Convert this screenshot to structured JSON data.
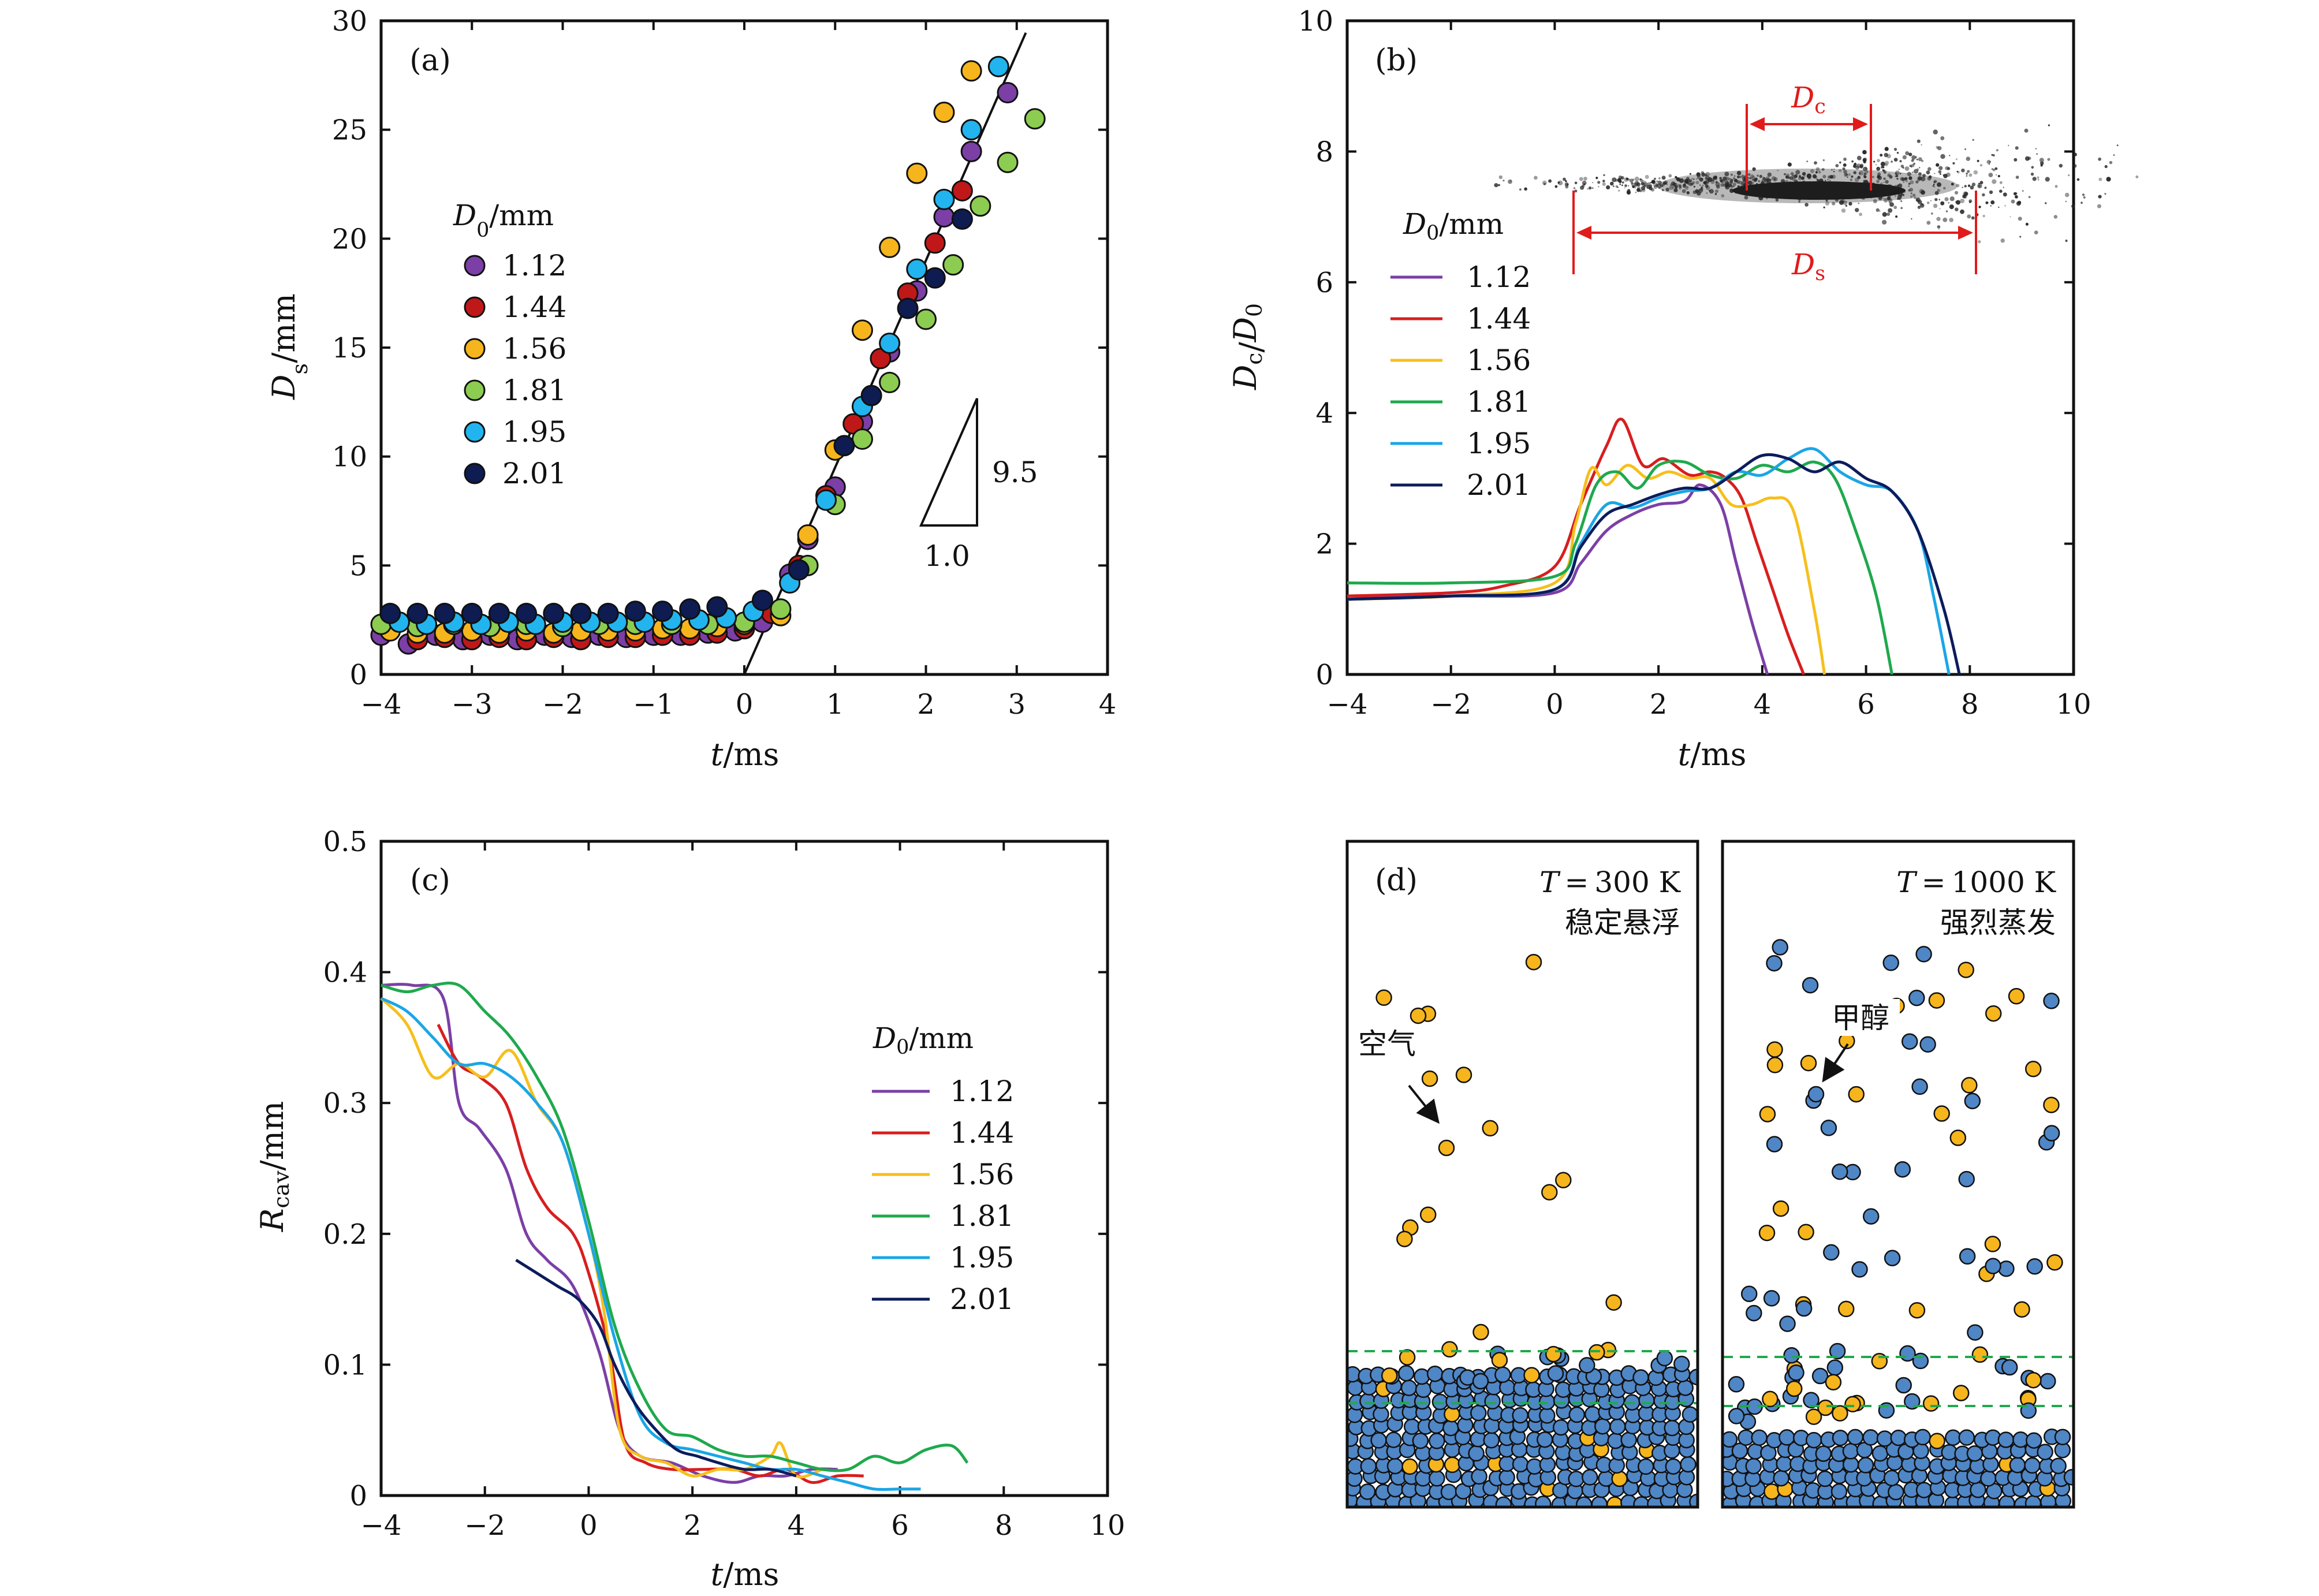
{
  "colors": {
    "1.12": "#7b3fa6",
    "1.44": "#d81e1e",
    "1.56": "#f6bf1c",
    "1.81": "#1fa94d",
    "1.95": "#1aa6e6",
    "2.01": "#0c1c5c",
    "scatter_112": "#7b3fa6",
    "scatter_144": "#c01818",
    "scatter_156": "#f6b51c",
    "scatter_181": "#8ccc50",
    "scatter_195": "#22b4ee",
    "scatter_201": "#0e1c52",
    "red_annot": "#e01b1b",
    "methanol": "#4f86c6",
    "air": "#f6b51c",
    "dashed": "#1fa94d"
  },
  "legend_title": "D₀/mm",
  "legend_entries": [
    "1.12",
    "1.44",
    "1.56",
    "1.81",
    "1.95",
    "2.01"
  ],
  "chart_data": [
    {
      "panel": "(a)",
      "type": "scatter",
      "xlabel": "t/ms",
      "ylabel": "Ds/mm",
      "xlim": [
        -4,
        4
      ],
      "ylim": [
        0,
        30
      ],
      "xticks": [
        -4,
        -3,
        -2,
        -1,
        0,
        1,
        2,
        3,
        4
      ],
      "yticks": [
        0,
        5,
        10,
        15,
        20,
        25,
        30
      ],
      "x_tick_labels": [
        "−4",
        "−3",
        "−2",
        "−1",
        "0",
        "1",
        "2",
        "3",
        "4"
      ],
      "y_tick_labels": [
        "0",
        "5",
        "10",
        "15",
        "20",
        "25",
        "30"
      ],
      "fit_line": {
        "slope": 9.5,
        "x0": 0.0,
        "x1": 3.1
      },
      "slope_triangle": {
        "rise_label": "9.5",
        "run_label": "1.0"
      },
      "series": [
        {
          "name": "1.12",
          "x": [
            -4.0,
            -3.7,
            -3.4,
            -3.1,
            -2.8,
            -2.5,
            -2.2,
            -1.9,
            -1.6,
            -1.3,
            -1.0,
            -0.7,
            -0.4,
            -0.1,
            0.2,
            0.5,
            0.7,
            1.0,
            1.3,
            1.6,
            1.9,
            2.2,
            2.5,
            2.9
          ],
          "y": [
            1.8,
            1.4,
            1.8,
            1.6,
            1.8,
            1.6,
            1.8,
            1.7,
            1.8,
            1.7,
            1.8,
            1.8,
            1.9,
            2.0,
            2.4,
            4.6,
            6.2,
            8.6,
            11.6,
            14.8,
            17.6,
            21.0,
            24.0,
            26.7
          ]
        },
        {
          "name": "1.44",
          "x": [
            -3.6,
            -3.3,
            -3.0,
            -2.7,
            -2.4,
            -2.1,
            -1.8,
            -1.5,
            -1.2,
            -0.9,
            -0.6,
            -0.3,
            0.0,
            0.3,
            0.6,
            0.9,
            1.2,
            1.5,
            1.8,
            2.1,
            2.4
          ],
          "y": [
            1.6,
            1.7,
            1.6,
            1.7,
            1.6,
            1.7,
            1.6,
            1.7,
            1.7,
            1.8,
            1.8,
            1.9,
            2.1,
            2.8,
            5.0,
            8.2,
            11.5,
            14.5,
            17.5,
            19.8,
            22.2
          ]
        },
        {
          "name": "1.56",
          "x": [
            -3.9,
            -3.6,
            -3.3,
            -3.0,
            -2.7,
            -2.4,
            -2.1,
            -1.8,
            -1.5,
            -1.2,
            -0.9,
            -0.6,
            -0.3,
            0.0,
            0.4,
            0.7,
            1.0,
            1.3,
            1.6,
            1.9,
            2.2,
            2.5
          ],
          "y": [
            2.0,
            1.9,
            1.9,
            2.0,
            1.9,
            2.0,
            1.9,
            2.0,
            2.0,
            2.0,
            2.1,
            2.1,
            2.2,
            2.3,
            2.7,
            6.4,
            10.3,
            15.8,
            19.6,
            23.0,
            25.8,
            27.7
          ]
        },
        {
          "name": "1.81",
          "x": [
            -4.0,
            -3.6,
            -3.2,
            -2.8,
            -2.4,
            -2.0,
            -1.6,
            -1.2,
            -0.8,
            -0.4,
            0.0,
            0.4,
            0.7,
            1.0,
            1.3,
            1.6,
            2.0,
            2.3,
            2.6,
            2.9,
            3.2
          ],
          "y": [
            2.3,
            2.2,
            2.3,
            2.2,
            2.3,
            2.2,
            2.3,
            2.3,
            2.3,
            2.3,
            2.4,
            3.0,
            5.0,
            7.8,
            10.8,
            13.4,
            16.3,
            18.8,
            21.5,
            23.5,
            25.5
          ]
        },
        {
          "name": "1.95",
          "x": [
            -3.8,
            -3.5,
            -3.2,
            -2.9,
            -2.6,
            -2.3,
            -2.0,
            -1.7,
            -1.4,
            -1.1,
            -0.8,
            -0.5,
            -0.2,
            0.1,
            0.5,
            0.9,
            1.3,
            1.6,
            1.9,
            2.2,
            2.5,
            2.8
          ],
          "y": [
            2.4,
            2.3,
            2.4,
            2.3,
            2.4,
            2.3,
            2.4,
            2.4,
            2.4,
            2.4,
            2.5,
            2.5,
            2.6,
            2.9,
            4.2,
            8.0,
            12.3,
            15.2,
            18.6,
            21.8,
            25.0,
            27.9
          ]
        },
        {
          "name": "2.01",
          "x": [
            -3.9,
            -3.6,
            -3.3,
            -3.0,
            -2.7,
            -2.4,
            -2.1,
            -1.8,
            -1.5,
            -1.2,
            -0.9,
            -0.6,
            -0.3,
            0.2,
            0.6,
            1.1,
            1.4,
            1.8,
            2.1,
            2.4
          ],
          "y": [
            2.8,
            2.8,
            2.8,
            2.8,
            2.8,
            2.8,
            2.8,
            2.8,
            2.8,
            2.9,
            2.9,
            3.0,
            3.1,
            3.4,
            4.8,
            10.5,
            12.8,
            16.8,
            18.2,
            20.9
          ]
        }
      ]
    },
    {
      "panel": "(b)",
      "type": "line",
      "xlabel": "t/ms",
      "ylabel": "Dc/D0",
      "xlim": [
        -4,
        10
      ],
      "ylim": [
        0,
        10
      ],
      "xticks": [
        -4,
        -2,
        0,
        2,
        4,
        6,
        8,
        10
      ],
      "yticks": [
        0,
        2,
        4,
        6,
        8,
        10
      ],
      "x_tick_labels": [
        "−4",
        "−2",
        "0",
        "2",
        "4",
        "6",
        "8",
        "10"
      ],
      "y_tick_labels": [
        "0",
        "2",
        "4",
        "6",
        "8",
        "10"
      ],
      "inset_labels": {
        "dc": "Dc",
        "ds": "Ds"
      },
      "series": [
        {
          "name": "1.12",
          "x": [
            -4,
            -2,
            0,
            0.5,
            1,
            1.5,
            2,
            2.5,
            2.8,
            3.2,
            3.5,
            3.8,
            4.1
          ],
          "y": [
            1.2,
            1.2,
            1.25,
            1.7,
            2.2,
            2.45,
            2.6,
            2.65,
            2.9,
            2.6,
            1.7,
            0.8,
            0.0
          ]
        },
        {
          "name": "1.44",
          "x": [
            -4,
            -2,
            -1,
            0,
            0.5,
            1,
            1.3,
            1.7,
            2.1,
            2.6,
            3.0,
            3.3,
            3.6,
            3.9,
            4.2,
            4.5,
            4.8
          ],
          "y": [
            1.2,
            1.25,
            1.35,
            1.65,
            2.6,
            3.5,
            3.9,
            3.2,
            3.3,
            3.05,
            3.1,
            3.0,
            2.7,
            2.0,
            1.3,
            0.6,
            0.0
          ]
        },
        {
          "name": "1.56",
          "x": [
            -4,
            -2,
            0,
            0.4,
            0.7,
            1.0,
            1.4,
            1.8,
            2.2,
            2.6,
            3.0,
            3.4,
            3.8,
            4.2,
            4.6,
            5.0,
            5.2
          ],
          "y": [
            1.15,
            1.2,
            1.4,
            2.3,
            3.15,
            2.9,
            3.2,
            3.0,
            3.1,
            3.0,
            3.0,
            2.6,
            2.6,
            2.7,
            2.5,
            1.0,
            0.0
          ]
        },
        {
          "name": "1.81",
          "x": [
            -4,
            -2,
            0,
            0.4,
            0.8,
            1.2,
            1.6,
            2.0,
            2.5,
            3.0,
            3.5,
            4.0,
            4.5,
            5.0,
            5.4,
            5.8,
            6.2,
            6.5
          ],
          "y": [
            1.4,
            1.4,
            1.5,
            2.0,
            2.9,
            3.1,
            2.85,
            3.2,
            3.25,
            3.05,
            3.0,
            3.2,
            3.1,
            3.25,
            3.0,
            2.2,
            1.2,
            0.0
          ]
        },
        {
          "name": "1.95",
          "x": [
            -4,
            -2,
            0,
            0.5,
            1.0,
            1.5,
            2.0,
            2.5,
            3.0,
            3.5,
            4.0,
            4.5,
            5.0,
            5.5,
            6.0,
            6.5,
            7.0,
            7.3,
            7.6
          ],
          "y": [
            1.15,
            1.2,
            1.3,
            2.0,
            2.6,
            2.55,
            2.7,
            2.8,
            2.85,
            3.1,
            3.05,
            3.3,
            3.45,
            3.1,
            2.9,
            2.8,
            2.2,
            1.2,
            0.0
          ]
        },
        {
          "name": "2.01",
          "x": [
            -4,
            -2,
            0,
            0.5,
            1.0,
            1.5,
            2.0,
            2.5,
            3.0,
            3.5,
            4.0,
            4.5,
            5.0,
            5.5,
            6.0,
            6.5,
            7.0,
            7.5,
            7.8
          ],
          "y": [
            1.15,
            1.2,
            1.3,
            1.95,
            2.45,
            2.6,
            2.75,
            2.85,
            2.85,
            3.1,
            3.35,
            3.3,
            3.1,
            3.25,
            3.0,
            2.8,
            2.2,
            1.0,
            0.0
          ]
        }
      ]
    },
    {
      "panel": "(c)",
      "type": "line",
      "xlabel": "t/ms",
      "ylabel": "Rcav/mm",
      "xlim": [
        -4,
        10
      ],
      "ylim": [
        0,
        0.5
      ],
      "xticks": [
        -4,
        -2,
        0,
        2,
        4,
        6,
        8,
        10
      ],
      "yticks": [
        0,
        0.1,
        0.2,
        0.3,
        0.4,
        0.5
      ],
      "x_tick_labels": [
        "−4",
        "−2",
        "0",
        "2",
        "4",
        "6",
        "8",
        "10"
      ],
      "y_tick_labels": [
        "0",
        "0.1",
        "0.2",
        "0.3",
        "0.4",
        "0.5"
      ],
      "series": [
        {
          "name": "1.12",
          "x": [
            -4,
            -3.4,
            -2.8,
            -2.5,
            -2.1,
            -1.6,
            -1.2,
            -0.8,
            -0.3,
            0.2,
            0.6,
            1.0,
            1.6,
            2.2,
            2.8,
            3.3,
            3.8,
            4.3,
            4.8
          ],
          "y": [
            0.39,
            0.39,
            0.38,
            0.3,
            0.28,
            0.25,
            0.2,
            0.18,
            0.16,
            0.11,
            0.05,
            0.03,
            0.025,
            0.015,
            0.01,
            0.015,
            0.015,
            0.02,
            0.02
          ]
        },
        {
          "name": "1.44",
          "x": [
            -2.9,
            -2.5,
            -2.1,
            -1.6,
            -1.2,
            -0.8,
            -0.3,
            0.0,
            0.4,
            0.7,
            1.1,
            1.6,
            2.2,
            2.8,
            3.3,
            3.8,
            4.3,
            4.8,
            5.3
          ],
          "y": [
            0.36,
            0.33,
            0.32,
            0.3,
            0.25,
            0.22,
            0.2,
            0.17,
            0.11,
            0.04,
            0.025,
            0.02,
            0.02,
            0.02,
            0.015,
            0.02,
            0.01,
            0.015,
            0.015
          ]
        },
        {
          "name": "1.56",
          "x": [
            -4,
            -3.5,
            -3.0,
            -2.5,
            -2.0,
            -1.5,
            -1.0,
            -0.5,
            0.0,
            0.3,
            0.6,
            1.0,
            1.5,
            2.0,
            2.5,
            3.0,
            3.5,
            3.7,
            4.0,
            4.5
          ],
          "y": [
            0.38,
            0.36,
            0.32,
            0.33,
            0.32,
            0.34,
            0.3,
            0.27,
            0.2,
            0.14,
            0.05,
            0.03,
            0.025,
            0.015,
            0.02,
            0.02,
            0.03,
            0.04,
            0.015,
            0.02
          ]
        },
        {
          "name": "1.81",
          "x": [
            -4,
            -3.5,
            -3.0,
            -2.5,
            -2.0,
            -1.5,
            -1.0,
            -0.5,
            0.0,
            0.5,
            1.0,
            1.5,
            2.0,
            2.5,
            3.0,
            3.5,
            4.0,
            4.5,
            5.0,
            5.5,
            6.0,
            6.5,
            7.0,
            7.3
          ],
          "y": [
            0.39,
            0.385,
            0.39,
            0.39,
            0.37,
            0.35,
            0.32,
            0.28,
            0.21,
            0.13,
            0.08,
            0.05,
            0.045,
            0.035,
            0.03,
            0.03,
            0.025,
            0.02,
            0.02,
            0.03,
            0.025,
            0.035,
            0.038,
            0.025
          ]
        },
        {
          "name": "1.95",
          "x": [
            -4,
            -3.5,
            -3.0,
            -2.5,
            -2.0,
            -1.5,
            -1.0,
            -0.5,
            0.0,
            0.5,
            1.0,
            1.5,
            2.0,
            2.5,
            3.0,
            3.5,
            4.0,
            4.5,
            5.0,
            5.5,
            6.0,
            6.4
          ],
          "y": [
            0.38,
            0.37,
            0.35,
            0.33,
            0.33,
            0.32,
            0.3,
            0.27,
            0.2,
            0.12,
            0.06,
            0.04,
            0.035,
            0.03,
            0.025,
            0.02,
            0.02,
            0.015,
            0.01,
            0.005,
            0.005,
            0.005
          ]
        },
        {
          "name": "2.01",
          "x": [
            -1.4,
            -1.0,
            -0.6,
            -0.2,
            0.2,
            0.5,
            0.9,
            1.3,
            1.7,
            2.1,
            2.5,
            3.0,
            3.5,
            4.0
          ],
          "y": [
            0.18,
            0.17,
            0.16,
            0.15,
            0.13,
            0.1,
            0.07,
            0.05,
            0.035,
            0.03,
            0.025,
            0.02,
            0.02,
            0.015
          ]
        }
      ]
    }
  ],
  "panel_d": {
    "label": "(d)",
    "left_temp": "T = 300 K",
    "left_caption": "稳定悬浮",
    "right_temp": "T = 1000 K",
    "right_caption": "强烈蒸发",
    "air_label": "空气",
    "methanol_label": "甲醇"
  }
}
